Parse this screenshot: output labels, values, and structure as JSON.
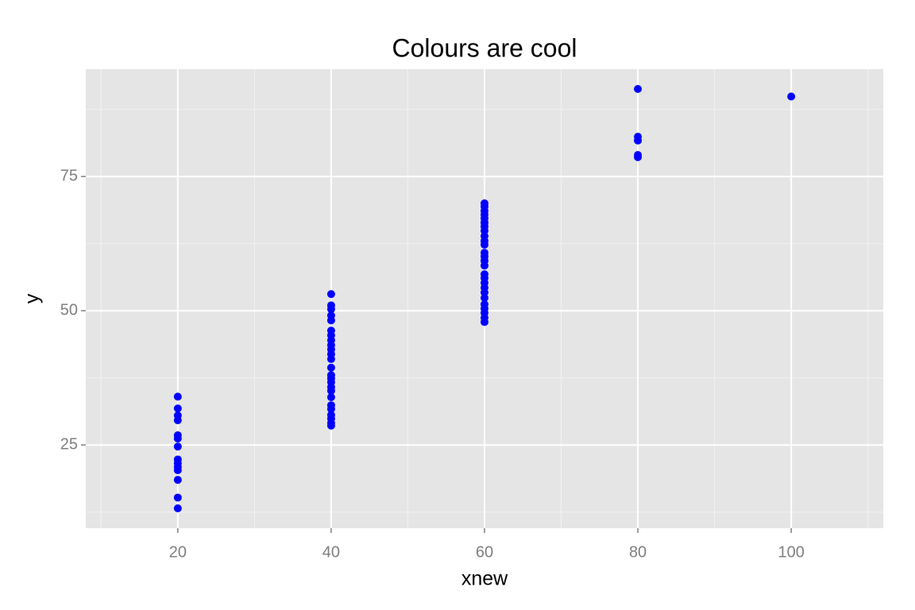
{
  "chart_data": {
    "type": "scatter",
    "title": "Colours are cool",
    "x_label": "xnew",
    "y_label": "y",
    "xlim": [
      8,
      112
    ],
    "ylim": [
      9.5,
      95
    ],
    "xticks": [
      20,
      40,
      60,
      80,
      100
    ],
    "yticks": [
      25,
      50,
      75
    ],
    "xminor": [
      10,
      30,
      50,
      70,
      90,
      110
    ],
    "yminor": [
      12.5,
      37.5,
      62.5,
      87.5
    ],
    "grid": true,
    "color": "#0000ff",
    "x": [
      20,
      20,
      20,
      20,
      20,
      20,
      20,
      20,
      20,
      20,
      20,
      20,
      20,
      20,
      40,
      40,
      40,
      40,
      40,
      40,
      40,
      40,
      40,
      40,
      40,
      40,
      40,
      40,
      40,
      40,
      40,
      40,
      40,
      40,
      40,
      40,
      40,
      40,
      40,
      60,
      60,
      60,
      60,
      60,
      60,
      60,
      60,
      60,
      60,
      60,
      60,
      60,
      60,
      60,
      60,
      60,
      60,
      60,
      60,
      60,
      60,
      60,
      60,
      60,
      60,
      80,
      80,
      80,
      80,
      80,
      100
    ],
    "values": [
      34.0,
      31.8,
      30.5,
      29.6,
      26.8,
      26.2,
      24.7,
      22.3,
      21.6,
      20.9,
      20.3,
      18.5,
      15.2,
      13.2,
      53.1,
      51.0,
      50.3,
      49.1,
      48.2,
      46.3,
      45.4,
      44.5,
      43.6,
      42.8,
      41.9,
      41.0,
      39.4,
      38.0,
      37.4,
      36.7,
      35.8,
      35.1,
      33.9,
      32.4,
      31.7,
      30.6,
      29.9,
      29.1,
      28.6,
      70.0,
      69.4,
      68.6,
      67.9,
      67.2,
      66.4,
      65.7,
      64.9,
      63.9,
      63.0,
      62.3,
      60.8,
      60.1,
      59.3,
      58.4,
      56.8,
      56.1,
      55.2,
      54.3,
      53.4,
      52.4,
      51.2,
      50.4,
      49.6,
      48.7,
      47.9,
      91.3,
      82.4,
      81.7,
      79.0,
      78.6,
      89.9
    ]
  }
}
